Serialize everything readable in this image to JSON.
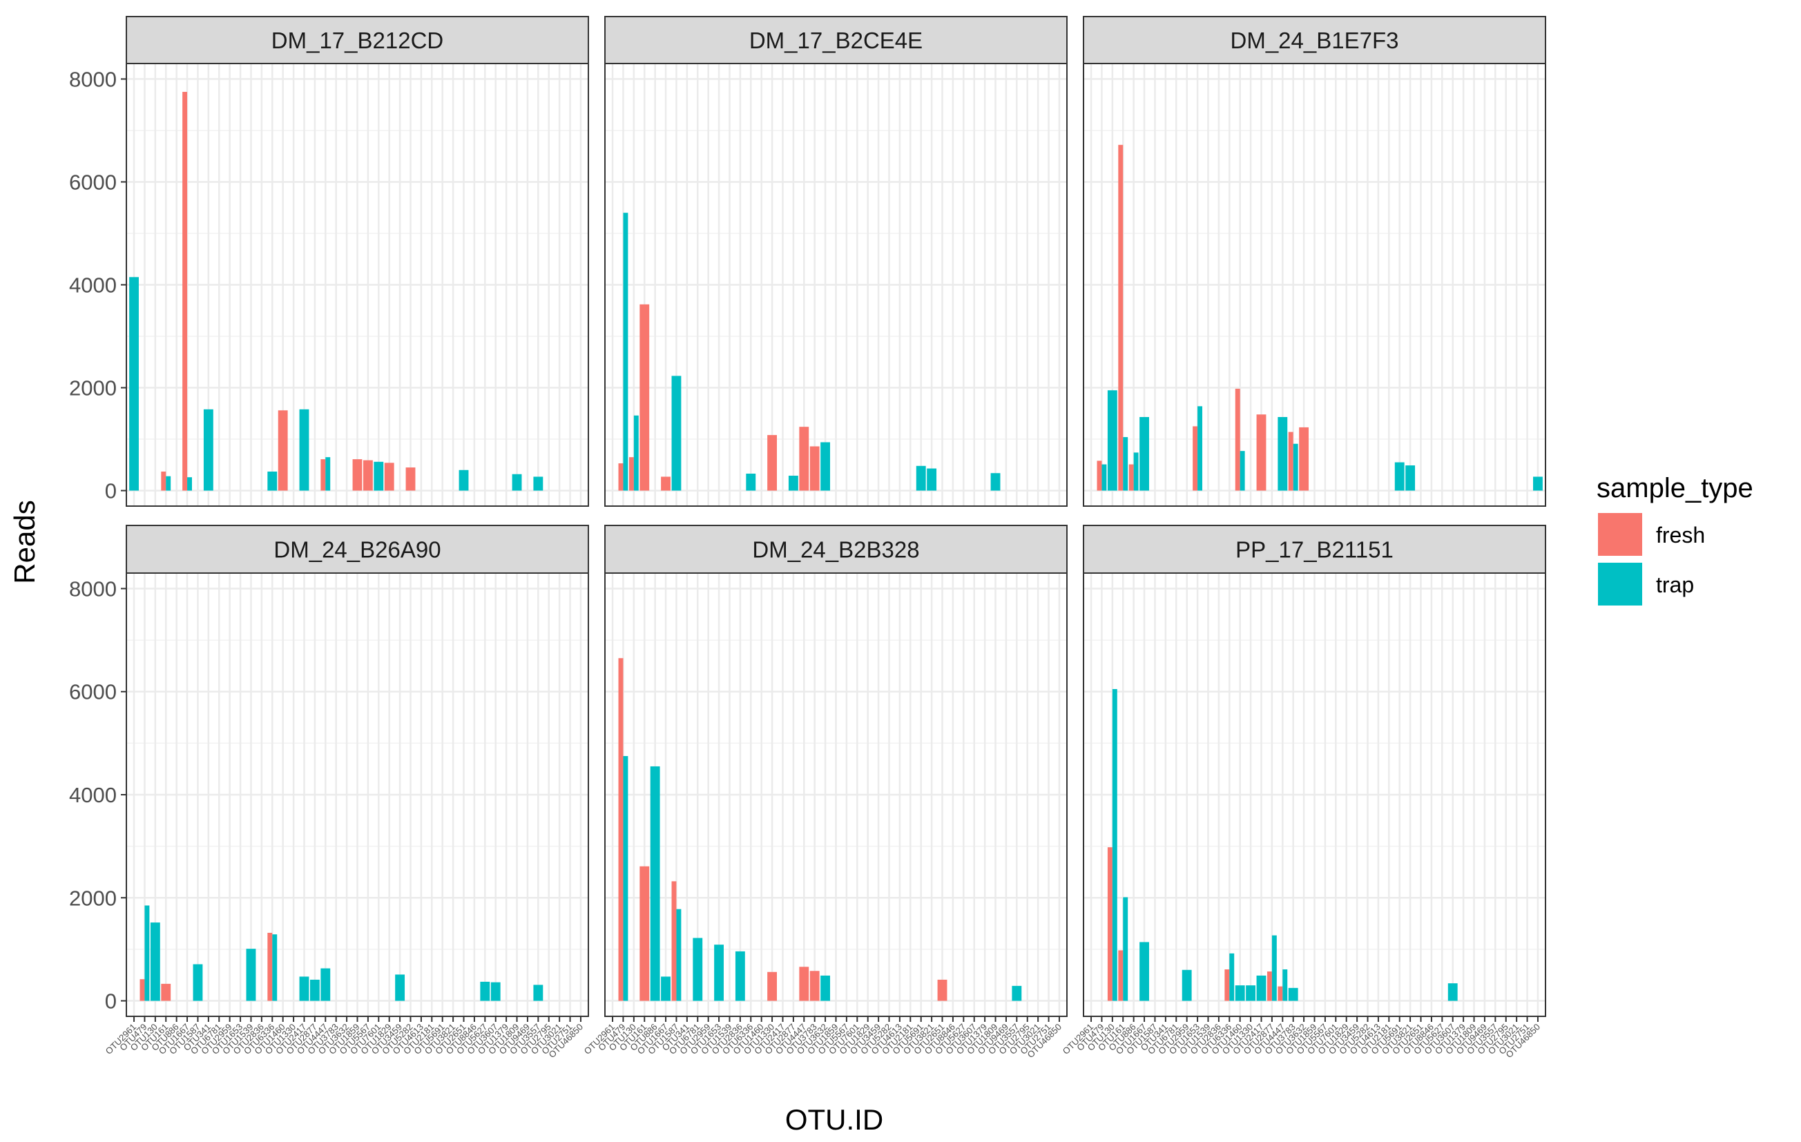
{
  "chart_data": {
    "type": "bar",
    "facet_by": "sample",
    "x_label": "OTU.ID",
    "y_label": "Reads",
    "ylim": [
      0,
      8000
    ],
    "y_ticks": [
      0,
      2000,
      4000,
      6000,
      8000
    ],
    "grid": true,
    "legend": {
      "title": "sample_type",
      "position": "right",
      "entries": [
        {
          "label": "fresh",
          "color": "#F8766D"
        },
        {
          "label": "trap",
          "color": "#00BFC4"
        }
      ]
    },
    "categories": [
      "OTU2961",
      "OTU479",
      "OTU130",
      "OTU161",
      "OTU886",
      "OTU1667",
      "OTU1587",
      "OTU341",
      "OTU6781",
      "OTU2959",
      "OTU1653",
      "OTU1539",
      "OTU2836",
      "OTU6336",
      "OTU1460",
      "OTU1330",
      "OTU2417",
      "OTU2877",
      "OTU4447",
      "OTU3783",
      "OTU3632",
      "OTU1859",
      "OTU5567",
      "OTU7601",
      "OTU1829",
      "OTU3459",
      "OTU5282",
      "OTU4613",
      "OTU2181",
      "OTU5691",
      "OTU3821",
      "OTU2651",
      "OTU8846",
      "OTU5627",
      "OTU3607",
      "OTU1379",
      "OTU1809",
      "OTU9469",
      "OTU3557",
      "OTU2795",
      "OTU3021",
      "OTU2751",
      "OTU46850"
    ],
    "panels": [
      {
        "title": "DM_17_B212CD",
        "bars": [
          {
            "x": 0,
            "series": "trap",
            "value": 4150
          },
          {
            "x": 3,
            "series": "fresh",
            "value": 370
          },
          {
            "x": 3,
            "series": "trap",
            "value": 280
          },
          {
            "x": 5,
            "series": "fresh",
            "value": 7750
          },
          {
            "x": 5,
            "series": "trap",
            "value": 260
          },
          {
            "x": 7,
            "series": "trap",
            "value": 1580
          },
          {
            "x": 13,
            "series": "trap",
            "value": 370
          },
          {
            "x": 14,
            "series": "fresh",
            "value": 1560
          },
          {
            "x": 16,
            "series": "trap",
            "value": 1580
          },
          {
            "x": 18,
            "series": "fresh",
            "value": 610
          },
          {
            "x": 18,
            "series": "trap",
            "value": 650
          },
          {
            "x": 21,
            "series": "fresh",
            "value": 610
          },
          {
            "x": 22,
            "series": "fresh",
            "value": 590
          },
          {
            "x": 23,
            "series": "trap",
            "value": 560
          },
          {
            "x": 24,
            "series": "fresh",
            "value": 540
          },
          {
            "x": 26,
            "series": "fresh",
            "value": 450
          },
          {
            "x": 31,
            "series": "trap",
            "value": 400
          },
          {
            "x": 36,
            "series": "trap",
            "value": 320
          },
          {
            "x": 38,
            "series": "trap",
            "value": 270
          }
        ]
      },
      {
        "title": "DM_17_B2CE4E",
        "bars": [
          {
            "x": 1,
            "series": "fresh",
            "value": 530
          },
          {
            "x": 1,
            "series": "trap",
            "value": 5400
          },
          {
            "x": 2,
            "series": "fresh",
            "value": 650
          },
          {
            "x": 2,
            "series": "trap",
            "value": 1460
          },
          {
            "x": 3,
            "series": "fresh",
            "value": 3620
          },
          {
            "x": 5,
            "series": "fresh",
            "value": 270
          },
          {
            "x": 6,
            "series": "trap",
            "value": 2230
          },
          {
            "x": 13,
            "series": "trap",
            "value": 330
          },
          {
            "x": 15,
            "series": "fresh",
            "value": 1080
          },
          {
            "x": 17,
            "series": "trap",
            "value": 290
          },
          {
            "x": 18,
            "series": "fresh",
            "value": 1240
          },
          {
            "x": 19,
            "series": "fresh",
            "value": 860
          },
          {
            "x": 20,
            "series": "trap",
            "value": 940
          },
          {
            "x": 29,
            "series": "trap",
            "value": 480
          },
          {
            "x": 30,
            "series": "trap",
            "value": 430
          },
          {
            "x": 36,
            "series": "trap",
            "value": 340
          }
        ]
      },
      {
        "title": "DM_24_B1E7F3",
        "bars": [
          {
            "x": 1,
            "series": "fresh",
            "value": 580
          },
          {
            "x": 1,
            "series": "trap",
            "value": 510
          },
          {
            "x": 2,
            "series": "trap",
            "value": 1950
          },
          {
            "x": 3,
            "series": "fresh",
            "value": 6720
          },
          {
            "x": 3,
            "series": "trap",
            "value": 1040
          },
          {
            "x": 4,
            "series": "fresh",
            "value": 510
          },
          {
            "x": 4,
            "series": "trap",
            "value": 740
          },
          {
            "x": 5,
            "series": "trap",
            "value": 1430
          },
          {
            "x": 10,
            "series": "fresh",
            "value": 1250
          },
          {
            "x": 10,
            "series": "trap",
            "value": 1640
          },
          {
            "x": 14,
            "series": "fresh",
            "value": 1980
          },
          {
            "x": 14,
            "series": "trap",
            "value": 770
          },
          {
            "x": 16,
            "series": "fresh",
            "value": 1480
          },
          {
            "x": 18,
            "series": "trap",
            "value": 1430
          },
          {
            "x": 19,
            "series": "fresh",
            "value": 1140
          },
          {
            "x": 19,
            "series": "trap",
            "value": 910
          },
          {
            "x": 20,
            "series": "fresh",
            "value": 1230
          },
          {
            "x": 29,
            "series": "trap",
            "value": 550
          },
          {
            "x": 30,
            "series": "trap",
            "value": 490
          },
          {
            "x": 42,
            "series": "trap",
            "value": 270
          }
        ]
      },
      {
        "title": "DM_24_B26A90",
        "bars": [
          {
            "x": 1,
            "series": "fresh",
            "value": 420
          },
          {
            "x": 1,
            "series": "trap",
            "value": 1850
          },
          {
            "x": 2,
            "series": "trap",
            "value": 1520
          },
          {
            "x": 3,
            "series": "fresh",
            "value": 330
          },
          {
            "x": 6,
            "series": "trap",
            "value": 710
          },
          {
            "x": 11,
            "series": "trap",
            "value": 1010
          },
          {
            "x": 13,
            "series": "fresh",
            "value": 1320
          },
          {
            "x": 13,
            "series": "trap",
            "value": 1290
          },
          {
            "x": 16,
            "series": "trap",
            "value": 470
          },
          {
            "x": 17,
            "series": "trap",
            "value": 410
          },
          {
            "x": 18,
            "series": "trap",
            "value": 630
          },
          {
            "x": 25,
            "series": "trap",
            "value": 510
          },
          {
            "x": 33,
            "series": "trap",
            "value": 370
          },
          {
            "x": 34,
            "series": "trap",
            "value": 360
          },
          {
            "x": 38,
            "series": "trap",
            "value": 310
          }
        ]
      },
      {
        "title": "DM_24_B2B328",
        "bars": [
          {
            "x": 1,
            "series": "fresh",
            "value": 6650
          },
          {
            "x": 1,
            "series": "trap",
            "value": 4750
          },
          {
            "x": 3,
            "series": "fresh",
            "value": 2610
          },
          {
            "x": 4,
            "series": "trap",
            "value": 4550
          },
          {
            "x": 5,
            "series": "trap",
            "value": 470
          },
          {
            "x": 6,
            "series": "fresh",
            "value": 2320
          },
          {
            "x": 6,
            "series": "trap",
            "value": 1780
          },
          {
            "x": 8,
            "series": "trap",
            "value": 1220
          },
          {
            "x": 10,
            "series": "trap",
            "value": 1090
          },
          {
            "x": 12,
            "series": "trap",
            "value": 960
          },
          {
            "x": 15,
            "series": "fresh",
            "value": 560
          },
          {
            "x": 18,
            "series": "fresh",
            "value": 660
          },
          {
            "x": 19,
            "series": "fresh",
            "value": 580
          },
          {
            "x": 20,
            "series": "trap",
            "value": 490
          },
          {
            "x": 31,
            "series": "fresh",
            "value": 410
          },
          {
            "x": 38,
            "series": "trap",
            "value": 290
          }
        ]
      },
      {
        "title": "PP_17_B21151",
        "bars": [
          {
            "x": 2,
            "series": "fresh",
            "value": 2980
          },
          {
            "x": 2,
            "series": "trap",
            "value": 6050
          },
          {
            "x": 3,
            "series": "fresh",
            "value": 980
          },
          {
            "x": 3,
            "series": "trap",
            "value": 2010
          },
          {
            "x": 5,
            "series": "trap",
            "value": 1140
          },
          {
            "x": 9,
            "series": "trap",
            "value": 600
          },
          {
            "x": 13,
            "series": "fresh",
            "value": 610
          },
          {
            "x": 13,
            "series": "trap",
            "value": 920
          },
          {
            "x": 14,
            "series": "trap",
            "value": 300
          },
          {
            "x": 15,
            "series": "trap",
            "value": 300
          },
          {
            "x": 16,
            "series": "trap",
            "value": 490
          },
          {
            "x": 17,
            "series": "fresh",
            "value": 570
          },
          {
            "x": 17,
            "series": "trap",
            "value": 1270
          },
          {
            "x": 18,
            "series": "fresh",
            "value": 280
          },
          {
            "x": 18,
            "series": "trap",
            "value": 610
          },
          {
            "x": 19,
            "series": "trap",
            "value": 250
          },
          {
            "x": 34,
            "series": "trap",
            "value": 340
          }
        ]
      }
    ]
  }
}
